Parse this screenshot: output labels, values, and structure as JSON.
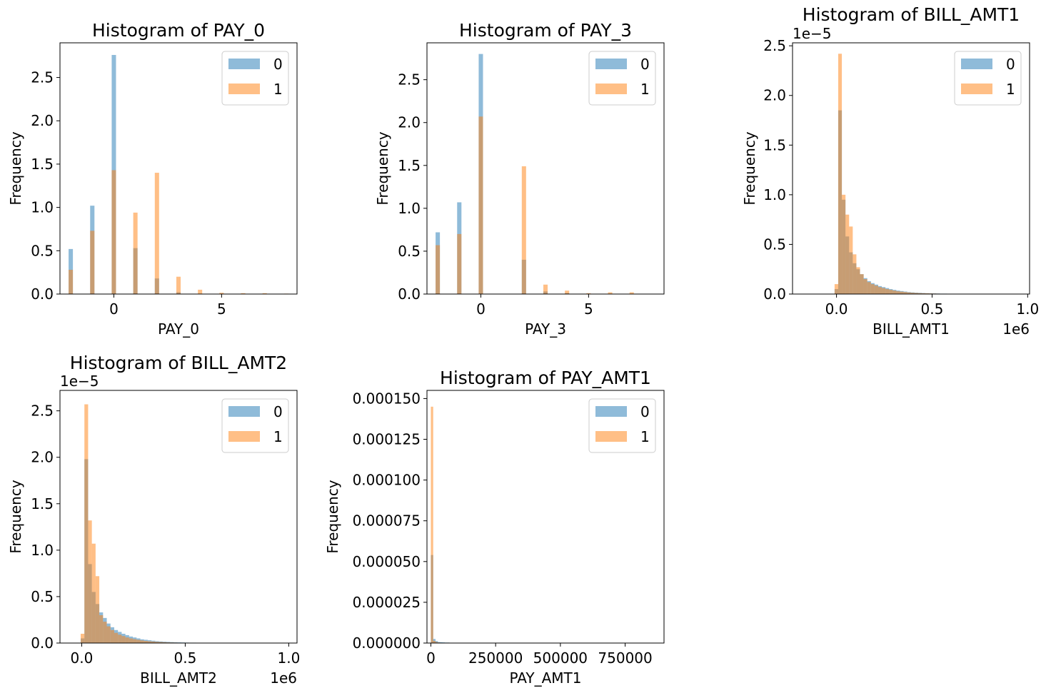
{
  "colors": {
    "class_0": "#1f77b4",
    "class_1": "#ff7f0e",
    "overlap": "#b78d5f"
  },
  "chart_data": [
    {
      "type": "bar",
      "title": "Histogram of PAY_0",
      "xlabel": "PAY_0",
      "ylabel": "Frequency",
      "xlim": [
        -2.5,
        8.5
      ],
      "ylim": [
        0,
        2.9
      ],
      "xticks": [
        0,
        5
      ],
      "xtick_labels": [
        "0",
        "5"
      ],
      "yticks": [
        0,
        0.5,
        1.0,
        1.5,
        2.0,
        2.5
      ],
      "ytick_labels": [
        "0.0",
        "0.5",
        "1.0",
        "1.5",
        "2.0",
        "2.5"
      ],
      "offset_text": "",
      "x_offset_text": "",
      "legend": {
        "position": "top-right",
        "labels": [
          "0",
          "1"
        ]
      },
      "bin_width": 0.2,
      "series": [
        {
          "name": "0",
          "bins": [
            [
              -2,
              0.52
            ],
            [
              -1,
              1.02
            ],
            [
              0,
              2.76
            ],
            [
              1,
              0.53
            ],
            [
              2,
              0.18
            ],
            [
              3,
              0.02
            ],
            [
              4,
              0.005
            ],
            [
              5,
              0.004
            ],
            [
              6,
              0.002
            ],
            [
              7,
              0.002
            ],
            [
              8,
              0.001
            ]
          ]
        },
        {
          "name": "1",
          "bins": [
            [
              -2,
              0.28
            ],
            [
              -1,
              0.73
            ],
            [
              0,
              1.43
            ],
            [
              1,
              0.94
            ],
            [
              2,
              1.4
            ],
            [
              3,
              0.2
            ],
            [
              4,
              0.05
            ],
            [
              5,
              0.015
            ],
            [
              6,
              0.01
            ],
            [
              7,
              0.01
            ],
            [
              8,
              0.005
            ]
          ]
        }
      ]
    },
    {
      "type": "bar",
      "title": "Histogram of PAY_3",
      "xlabel": "PAY_3",
      "ylabel": "Frequency",
      "xlim": [
        -2.5,
        8.5
      ],
      "ylim": [
        0,
        2.93
      ],
      "xticks": [
        0,
        5
      ],
      "xtick_labels": [
        "0",
        "5"
      ],
      "yticks": [
        0,
        0.5,
        1.0,
        1.5,
        2.0,
        2.5
      ],
      "ytick_labels": [
        "0.0",
        "0.5",
        "1.0",
        "1.5",
        "2.0",
        "2.5"
      ],
      "offset_text": "",
      "x_offset_text": "",
      "legend": {
        "position": "top-right",
        "labels": [
          "0",
          "1"
        ]
      },
      "bin_width": 0.2,
      "series": [
        {
          "name": "0",
          "bins": [
            [
              -2,
              0.72
            ],
            [
              -1,
              1.07
            ],
            [
              0,
              2.8
            ],
            [
              2,
              0.4
            ],
            [
              3,
              0.03
            ],
            [
              4,
              0.01
            ],
            [
              5,
              0.005
            ],
            [
              6,
              0.005
            ],
            [
              7,
              0.002
            ]
          ]
        },
        {
          "name": "1",
          "bins": [
            [
              -2,
              0.57
            ],
            [
              -1,
              0.7
            ],
            [
              0,
              2.07
            ],
            [
              2,
              1.49
            ],
            [
              3,
              0.11
            ],
            [
              4,
              0.04
            ],
            [
              5,
              0.01
            ],
            [
              6,
              0.02
            ],
            [
              7,
              0.02
            ]
          ]
        }
      ]
    },
    {
      "type": "bar",
      "title": "Histogram of BILL_AMT1",
      "xlabel": "BILL_AMT1",
      "ylabel": "Frequency",
      "xlim": [
        -230000,
        1010000
      ],
      "ylim": [
        0,
        2.53
      ],
      "xticks": [
        0,
        500000,
        1000000
      ],
      "xtick_labels": [
        "0.0",
        "0.5",
        "1.0"
      ],
      "yticks": [
        0,
        0.5,
        1.0,
        1.5,
        2.0,
        2.5
      ],
      "ytick_labels": [
        "0.0",
        "0.5",
        "1.0",
        "1.5",
        "2.0",
        "2.5"
      ],
      "offset_text": "1e−5",
      "x_offset_text": "1e6",
      "legend": {
        "position": "top-right",
        "labels": [
          "0",
          "1"
        ]
      },
      "hist_start": -10000,
      "hist_width": 19000,
      "series": [
        {
          "name": "0",
          "values": [
            0.05,
            1.85,
            0.95,
            0.58,
            0.42,
            0.31,
            0.25,
            0.2,
            0.16,
            0.13,
            0.11,
            0.095,
            0.08,
            0.07,
            0.06,
            0.05,
            0.042,
            0.035,
            0.03,
            0.025,
            0.02,
            0.017,
            0.014,
            0.012,
            0.01,
            0.008,
            0.007,
            0.006,
            0.005,
            0.004,
            0.004,
            0.003,
            0.003,
            0.002,
            0.002,
            0.002,
            0.001,
            0.001,
            0.001,
            0.001,
            0.001,
            0.001,
            0.001,
            0.001,
            0.001,
            0.001,
            0.001,
            0.001,
            0.001,
            0.001,
            0.001
          ]
        },
        {
          "name": "1",
          "values": [
            0.1,
            2.42,
            1.0,
            0.8,
            0.68,
            0.4,
            0.27,
            0.2,
            0.15,
            0.12,
            0.1,
            0.085,
            0.07,
            0.06,
            0.05,
            0.042,
            0.035,
            0.028,
            0.024,
            0.02,
            0.016,
            0.013,
            0.011,
            0.009,
            0.008,
            0.007,
            0.006,
            0.005,
            0.004,
            0.003,
            0.003,
            0.002,
            0.002,
            0.002,
            0.001,
            0.001,
            0.001,
            0.001,
            0.001,
            0.001,
            0.001,
            0.001,
            0.001,
            0.001,
            0.001,
            0.001,
            0.001,
            0.001,
            0.001,
            0.001,
            0.001
          ]
        }
      ]
    },
    {
      "type": "bar",
      "title": "Histogram of BILL_AMT2",
      "xlabel": "BILL_AMT2",
      "ylabel": "Frequency",
      "xlim": [
        -105000,
        1040000
      ],
      "ylim": [
        0,
        2.72
      ],
      "xticks": [
        0,
        500000,
        1000000
      ],
      "xtick_labels": [
        "0.0",
        "0.5",
        "1.0"
      ],
      "yticks": [
        0,
        0.5,
        1.0,
        1.5,
        2.0,
        2.5
      ],
      "ytick_labels": [
        "0.0",
        "0.5",
        "1.0",
        "1.5",
        "2.0",
        "2.5"
      ],
      "offset_text": "1e−5",
      "x_offset_text": "1e6",
      "legend": {
        "position": "top-right",
        "labels": [
          "0",
          "1"
        ]
      },
      "hist_start": -5000,
      "hist_width": 18000,
      "series": [
        {
          "name": "0",
          "values": [
            0.05,
            1.98,
            0.85,
            0.55,
            0.42,
            0.33,
            0.27,
            0.21,
            0.17,
            0.14,
            0.12,
            0.1,
            0.085,
            0.07,
            0.06,
            0.05,
            0.04,
            0.035,
            0.03,
            0.025,
            0.02,
            0.017,
            0.014,
            0.012,
            0.01,
            0.008,
            0.007,
            0.006,
            0.005,
            0.004,
            0.004,
            0.003,
            0.003,
            0.002,
            0.002,
            0.002,
            0.001,
            0.001,
            0.001,
            0.001,
            0.001,
            0.001,
            0.001,
            0.001,
            0.001,
            0.001,
            0.001,
            0.001,
            0.001,
            0.001,
            0.001,
            0.001,
            0.001,
            0.001,
            0.001,
            0.001
          ]
        },
        {
          "name": "1",
          "values": [
            0.1,
            2.57,
            1.32,
            1.07,
            0.72,
            0.3,
            0.23,
            0.18,
            0.14,
            0.11,
            0.09,
            0.075,
            0.06,
            0.05,
            0.042,
            0.035,
            0.028,
            0.023,
            0.019,
            0.016,
            0.013,
            0.011,
            0.009,
            0.007,
            0.006,
            0.005,
            0.004,
            0.003,
            0.003,
            0.002,
            0.002,
            0.002,
            0.001,
            0.001,
            0.001,
            0.001,
            0.001,
            0.001,
            0.001,
            0.001,
            0.001,
            0.001,
            0.001,
            0.001,
            0.001,
            0.001,
            0.001,
            0.001,
            0.001,
            0.001,
            0.001,
            0.001,
            0.001,
            0.001,
            0.001,
            0.001
          ]
        }
      ]
    },
    {
      "type": "bar",
      "title": "Histogram of PAY_AMT1",
      "xlabel": "PAY_AMT1",
      "ylabel": "Frequency",
      "xlim": [
        -15000,
        900000
      ],
      "ylim": [
        0,
        0.000155
      ],
      "xticks": [
        0,
        250000,
        500000,
        750000
      ],
      "xtick_labels": [
        "0",
        "250000",
        "500000",
        "750000"
      ],
      "yticks": [
        0,
        2.5e-05,
        5e-05,
        7.5e-05,
        0.0001,
        0.000125,
        0.00015
      ],
      "ytick_labels": [
        "0.000000",
        "0.000025",
        "0.000050",
        "0.000075",
        "0.000100",
        "0.000125",
        "0.000150"
      ],
      "offset_text": "",
      "x_offset_text": "",
      "legend": {
        "position": "top-right",
        "labels": [
          "0",
          "1"
        ]
      },
      "hist_start": 0,
      "hist_width": 9000,
      "series": [
        {
          "name": "0",
          "values": [
            5.4e-05,
            2.5e-06,
            1.2e-06,
            6e-07,
            5e-07,
            4e-07,
            3e-07,
            3e-07,
            2e-07,
            2e-07,
            2e-07,
            2e-07,
            1e-07,
            1e-07
          ]
        },
        {
          "name": "1",
          "values": [
            0.000145,
            1.3e-06,
            6e-07,
            3e-07,
            2e-07,
            2e-07,
            1e-07,
            1e-07,
            1e-07
          ]
        }
      ]
    }
  ]
}
